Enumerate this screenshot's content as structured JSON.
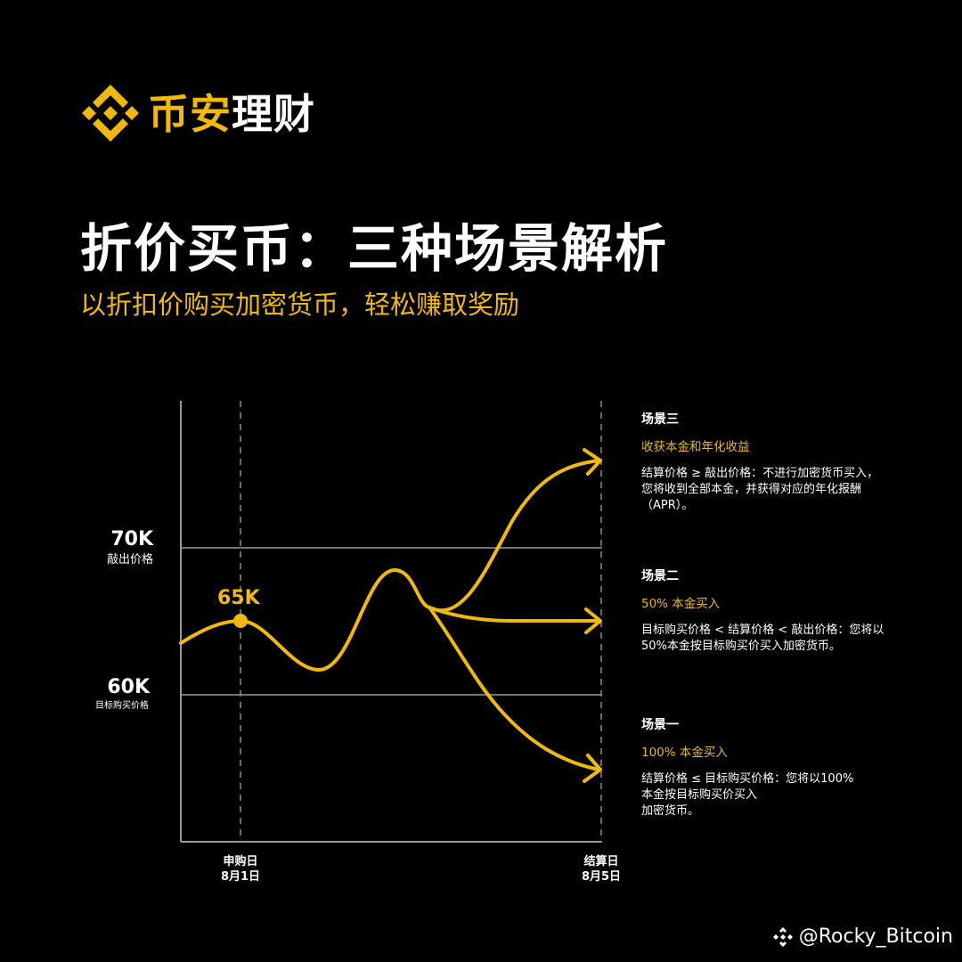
{
  "brand": {
    "name_part1": "币安",
    "name_part2": "理财",
    "logo_icon": "binance-diamond-icon"
  },
  "headline": {
    "title": "折价买币：三种场景解析",
    "subtitle": "以折扣价购买加密货币，轻松赚取奖励"
  },
  "colors": {
    "accent": "#F0B90B",
    "background": "#000000",
    "text": "#FFFFFF",
    "gridline": "#9A9A9A"
  },
  "chart": {
    "y_levels": [
      {
        "value_label": "70K",
        "caption": "敲出价格"
      },
      {
        "value_label": "60K",
        "caption": "目标购买价格"
      }
    ],
    "start_point_label": "65K",
    "x_markers": [
      {
        "line1": "申购日",
        "line2": "8月1日"
      },
      {
        "line1": "结算日",
        "line2": "8月5日"
      }
    ]
  },
  "scenarios": [
    {
      "heading": "场景三",
      "subheading": "收获本金和年化收益",
      "body": [
        "结算价格 ≥ 敲出价格：不进行加密货币买入，",
        "您将收到全部本金，并获得对应的年化报酬",
        "（APR）。"
      ]
    },
    {
      "heading": "场景二",
      "subheading": "50% 本金买入",
      "body": [
        "目标购买价格 < 结算价格 < 敲出价格：您将以",
        "50%本金按目标购买价买入加密货币。"
      ]
    },
    {
      "heading": "场景一",
      "subheading": "100% 本金买入",
      "body": [
        "结算价格 ≤ 目标购买价格：您将以100%",
        "本金按目标购买价买入",
        "加密货币。"
      ]
    }
  ],
  "watermark": {
    "text": "@Rocky_Bitcoin",
    "icon": "binance-diamond-icon"
  }
}
